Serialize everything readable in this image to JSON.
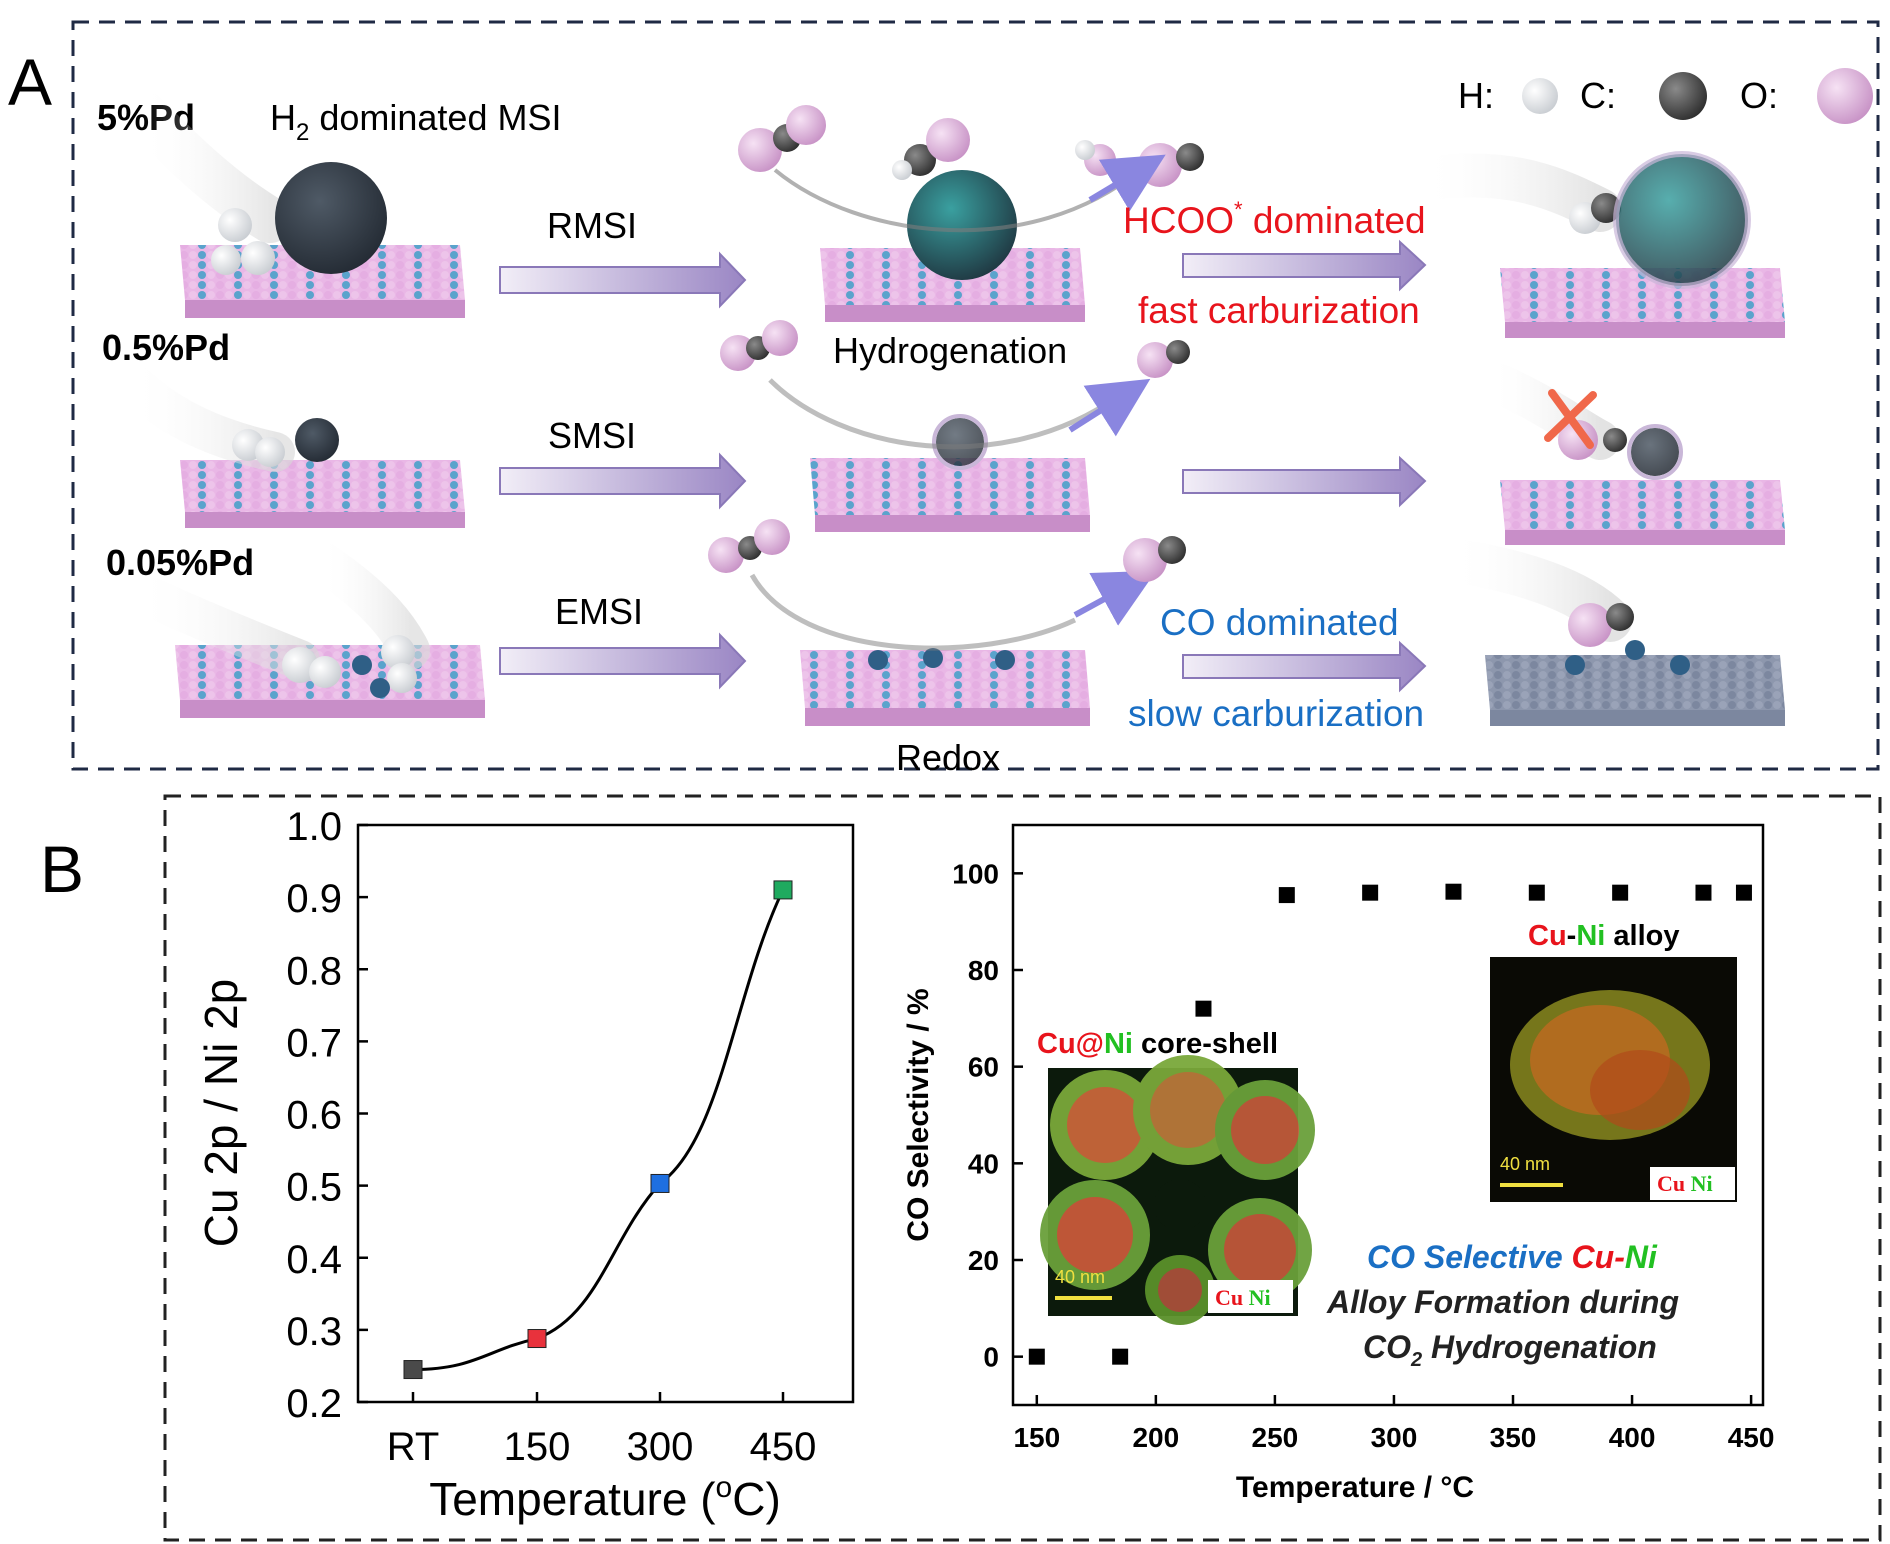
{
  "panel_a": {
    "label": "A",
    "legend": {
      "h": "H:",
      "c": "C:",
      "o": "O:"
    },
    "rows": [
      {
        "loading": "5%Pd",
        "interaction": "RMSI"
      },
      {
        "loading": "0.5%Pd",
        "interaction": "SMSI"
      },
      {
        "loading": "0.05%Pd",
        "interaction": "EMSI"
      }
    ],
    "h2_text_pre": "H",
    "h2_sub": "2",
    "h2_text_post": " dominated MSI",
    "hydrogenation": "Hydrogenation",
    "redox": "Redox",
    "hcoo_pre": "HCOO",
    "hcoo_sup": "*",
    "hcoo_post": " dominated",
    "fast_carb": "fast carburization",
    "co_dominated": "CO dominated",
    "slow_carb": "slow carburization",
    "colors": {
      "red_text": "#e8141c",
      "blue_text": "#1a6fc4",
      "pink": "#e7b3e3",
      "blue_atom": "#5aa0c8",
      "dark": "#3b4350"
    }
  },
  "panel_b": {
    "label": "B",
    "left_chart": {
      "type": "line",
      "x": [
        "RT",
        "150",
        "300",
        "450"
      ],
      "y": [
        0.245,
        0.288,
        0.503,
        0.91
      ],
      "marker_colors": [
        "#4a4a4a",
        "#e8323c",
        "#1e6fe0",
        "#1faa5f"
      ],
      "ylim": [
        0.2,
        1.0
      ],
      "yticks": [
        "0.2",
        "0.3",
        "0.4",
        "0.5",
        "0.6",
        "0.7",
        "0.8",
        "0.9",
        "1.0"
      ],
      "ylabel": "Cu 2p / Ni 2p",
      "xlabel": "Temperature (°C)",
      "xlabel_pre": "Temperature (",
      "xlabel_unit": "o",
      "xlabel_post": "C)"
    },
    "right_chart": {
      "type": "scatter",
      "x": [
        150,
        185,
        220,
        255,
        290,
        325,
        360,
        395,
        430,
        447
      ],
      "y": [
        0,
        0,
        72,
        95.5,
        96,
        96.2,
        96,
        96,
        96,
        96
      ],
      "xlim": [
        140,
        455
      ],
      "ylim": [
        -10,
        110
      ],
      "xticks": [
        "150",
        "200",
        "250",
        "300",
        "350",
        "400",
        "450"
      ],
      "yticks": [
        "0",
        "20",
        "40",
        "60",
        "80",
        "100"
      ],
      "xlabel": "Temperature / °C",
      "ylabel": "CO Selectivity / %",
      "inset_core_shell": {
        "cu": "Cu",
        "at": "@",
        "ni": "Ni",
        "rest": " core-shell",
        "scale": "40 nm",
        "legend_cu": "Cu",
        "legend_ni": "Ni"
      },
      "inset_alloy": {
        "cu": "Cu",
        "dash": "-",
        "ni": "Ni",
        "rest": " alloy",
        "scale": "40 nm",
        "legend_cu": "Cu",
        "legend_ni": "Ni"
      },
      "caption": {
        "line1_blue": "CO Selective ",
        "line1_cu": "Cu",
        "line1_dash": "-",
        "line1_ni": "Ni",
        "line2": "Alloy Formation during",
        "line3_pre": "CO",
        "line3_sub": "2",
        "line3_post": " Hydrogenation"
      }
    }
  }
}
